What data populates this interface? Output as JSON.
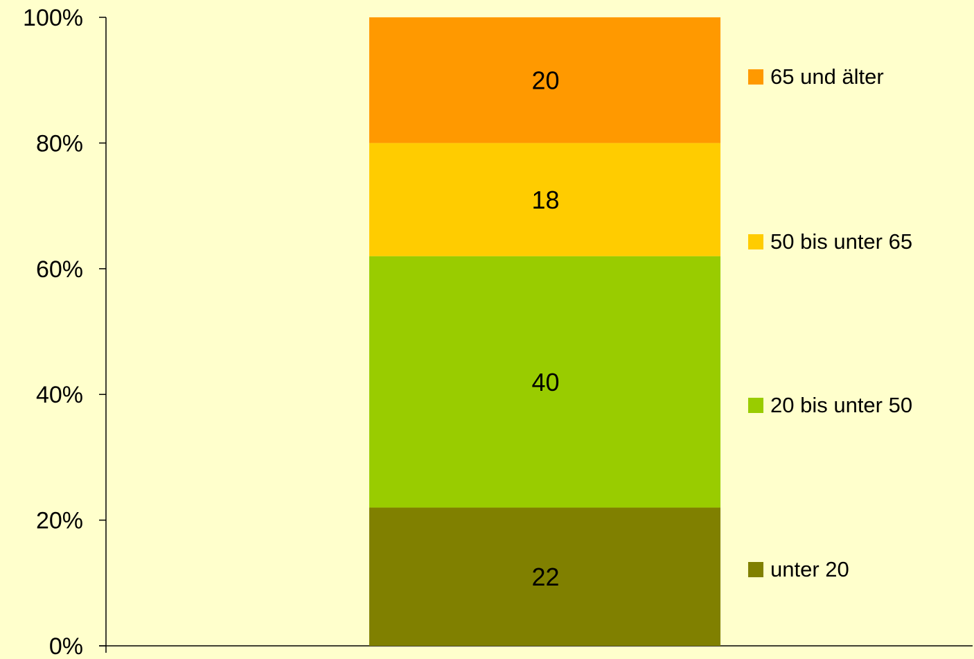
{
  "chart_data": {
    "type": "bar",
    "stacked": true,
    "normalized": true,
    "categories": [
      ""
    ],
    "series": [
      {
        "name": "unter 20",
        "values": [
          22
        ],
        "color": "#808000"
      },
      {
        "name": "20 bis unter 50",
        "values": [
          40
        ],
        "color": "#99CC00"
      },
      {
        "name": "50 bis unter 65",
        "values": [
          18
        ],
        "color": "#FFCC00"
      },
      {
        "name": "65 und älter",
        "values": [
          20
        ],
        "color": "#FF9900"
      }
    ],
    "data_labels": [
      "22",
      "40",
      "18",
      "20"
    ],
    "y_ticks": [
      "0%",
      "20%",
      "40%",
      "60%",
      "80%",
      "100%"
    ],
    "ylim": [
      0,
      100
    ],
    "title": "",
    "xlabel": "",
    "ylabel": "",
    "legend_position": "right",
    "grid": false,
    "background_color": "#FFFFCC",
    "axis_color": "#000000"
  }
}
